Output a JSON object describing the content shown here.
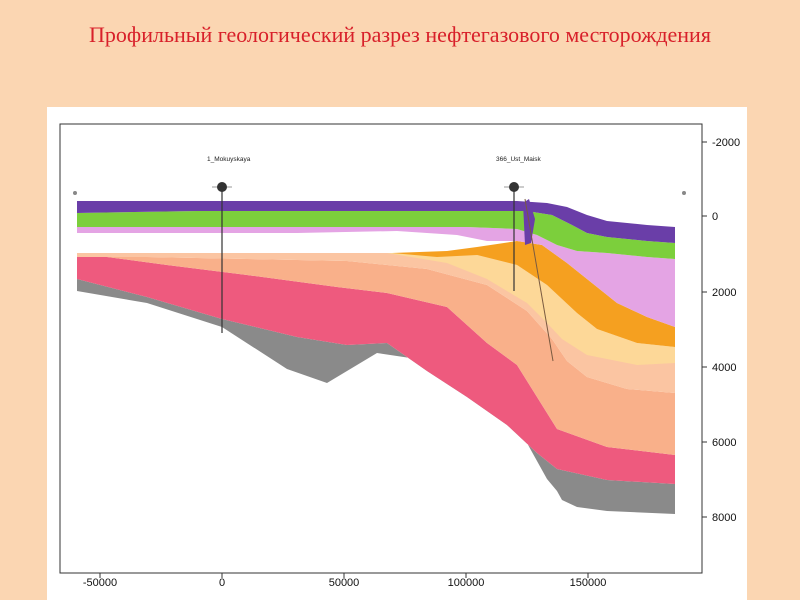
{
  "title": "Профильный геологический разрез нефтегазового месторождения",
  "wells": [
    {
      "name": "1_Mokuyskaya",
      "x": 0
    },
    {
      "name": "366_Ust_Maisk",
      "x": 120000
    }
  ],
  "x_axis": {
    "ticks": [
      "-50000",
      "0",
      "50000",
      "100000",
      "150000"
    ]
  },
  "depth_axis": {
    "ticks": [
      "-2000",
      "0",
      "2000",
      "4000",
      "6000",
      "8000"
    ]
  },
  "layer_colors": {
    "purple": "#6a3ea8",
    "green": "#7ccf3c",
    "lilac": "#e4a4e4",
    "salmon_light": "#fbc5a2",
    "orange": "#f5a020",
    "yellow": "#fdd898",
    "peach": "#f9b08a",
    "pink": "#ee5a7e",
    "gray": "#8a8a8a"
  }
}
